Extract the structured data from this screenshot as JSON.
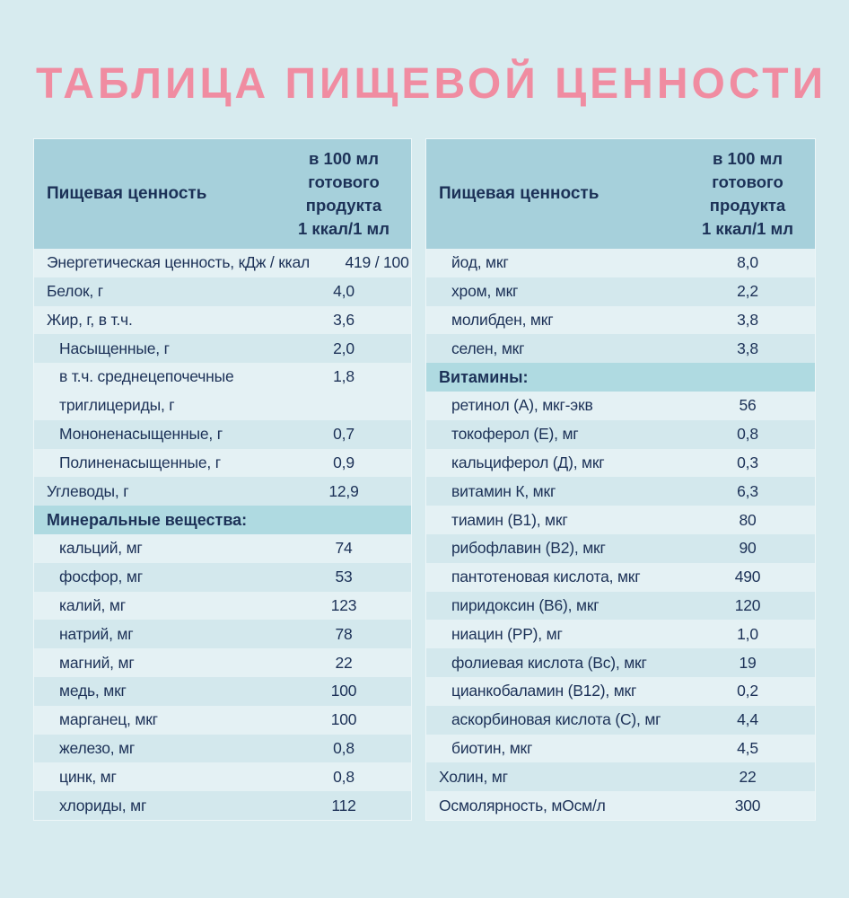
{
  "page": {
    "title": "ТАБЛИЦА ПИЩЕВОЙ ЦЕННОСТИ"
  },
  "colors": {
    "bg": "#d7ebef",
    "header": "#a6d0db",
    "section": "#afdae1",
    "rowLight": "#e4f1f4",
    "rowDark": "#d3e8ed",
    "text": "#1c3157",
    "accent": "#f08ca1"
  },
  "tables": [
    {
      "header": {
        "label": "Пищевая ценность",
        "value": "в 100 мл\nготового\nпродукта\n1 ккал/1 мл"
      },
      "rows": [
        {
          "label": "Энергетическая ценность, кДж / ккал",
          "value": "419 / 100",
          "indent": 0,
          "type": "row"
        },
        {
          "label": "Белок, г",
          "value": "4,0",
          "indent": 0,
          "type": "row"
        },
        {
          "label": "Жир, г, в т.ч.",
          "value": "3,6",
          "indent": 0,
          "type": "row"
        },
        {
          "label": "Насыщенные, г",
          "value": "2,0",
          "indent": 1,
          "type": "row"
        },
        {
          "label": "в т.ч. среднецепочечные\nтриглицериды, г",
          "value": "1,8",
          "indent": 1,
          "type": "row"
        },
        {
          "label": "Мононенасыщенные, г",
          "value": "0,7",
          "indent": 1,
          "type": "row"
        },
        {
          "label": "Полиненасыщенные, г",
          "value": "0,9",
          "indent": 1,
          "type": "row"
        },
        {
          "label": "Углеводы, г",
          "value": "12,9",
          "indent": 0,
          "type": "row"
        },
        {
          "label": "Минеральные вещества:",
          "value": "",
          "indent": 0,
          "type": "section"
        },
        {
          "label": "кальций, мг",
          "value": "74",
          "indent": 1,
          "type": "row"
        },
        {
          "label": "фосфор, мг",
          "value": "53",
          "indent": 1,
          "type": "row"
        },
        {
          "label": "калий, мг",
          "value": "123",
          "indent": 1,
          "type": "row"
        },
        {
          "label": "натрий, мг",
          "value": "78",
          "indent": 1,
          "type": "row"
        },
        {
          "label": "магний, мг",
          "value": "22",
          "indent": 1,
          "type": "row"
        },
        {
          "label": "медь, мкг",
          "value": "100",
          "indent": 1,
          "type": "row"
        },
        {
          "label": "марганец, мкг",
          "value": "100",
          "indent": 1,
          "type": "row"
        },
        {
          "label": "железо, мг",
          "value": "0,8",
          "indent": 1,
          "type": "row"
        },
        {
          "label": "цинк, мг",
          "value": "0,8",
          "indent": 1,
          "type": "row"
        },
        {
          "label": "хлориды, мг",
          "value": "112",
          "indent": 1,
          "type": "row"
        }
      ]
    },
    {
      "header": {
        "label": "Пищевая ценность",
        "value": "в 100 мл\nготового\nпродукта\n1 ккал/1 мл"
      },
      "rows": [
        {
          "label": "йод, мкг",
          "value": "8,0",
          "indent": 1,
          "type": "row"
        },
        {
          "label": "хром, мкг",
          "value": "2,2",
          "indent": 1,
          "type": "row"
        },
        {
          "label": "молибден, мкг",
          "value": "3,8",
          "indent": 1,
          "type": "row"
        },
        {
          "label": "селен, мкг",
          "value": "3,8",
          "indent": 1,
          "type": "row"
        },
        {
          "label": "Витамины:",
          "value": "",
          "indent": 0,
          "type": "section"
        },
        {
          "label": "ретинол (А), мкг-экв",
          "value": "56",
          "indent": 1,
          "type": "row"
        },
        {
          "label": "токоферол (Е), мг",
          "value": "0,8",
          "indent": 1,
          "type": "row"
        },
        {
          "label": "кальциферол (Д), мкг",
          "value": "0,3",
          "indent": 1,
          "type": "row"
        },
        {
          "label": "витамин К, мкг",
          "value": "6,3",
          "indent": 1,
          "type": "row"
        },
        {
          "label": "тиамин (В1), мкг",
          "value": "80",
          "indent": 1,
          "type": "row"
        },
        {
          "label": "рибофлавин (В2), мкг",
          "value": "90",
          "indent": 1,
          "type": "row"
        },
        {
          "label": "пантотеновая кислота, мкг",
          "value": "490",
          "indent": 1,
          "type": "row"
        },
        {
          "label": "пиридоксин (В6), мкг",
          "value": "120",
          "indent": 1,
          "type": "row"
        },
        {
          "label": "ниацин (РР), мг",
          "value": "1,0",
          "indent": 1,
          "type": "row"
        },
        {
          "label": "фолиевая кислота (Вс), мкг",
          "value": "19",
          "indent": 1,
          "type": "row"
        },
        {
          "label": "цианкобаламин (В12), мкг",
          "value": "0,2",
          "indent": 1,
          "type": "row"
        },
        {
          "label": "аскорбиновая кислота (С), мг",
          "value": "4,4",
          "indent": 1,
          "type": "row"
        },
        {
          "label": "биотин, мкг",
          "value": "4,5",
          "indent": 1,
          "type": "row"
        },
        {
          "label": "Холин, мг",
          "value": "22",
          "indent": 0,
          "type": "row"
        },
        {
          "label": "Осмолярность, мОсм/л",
          "value": "300",
          "indent": 0,
          "type": "row"
        }
      ]
    }
  ]
}
